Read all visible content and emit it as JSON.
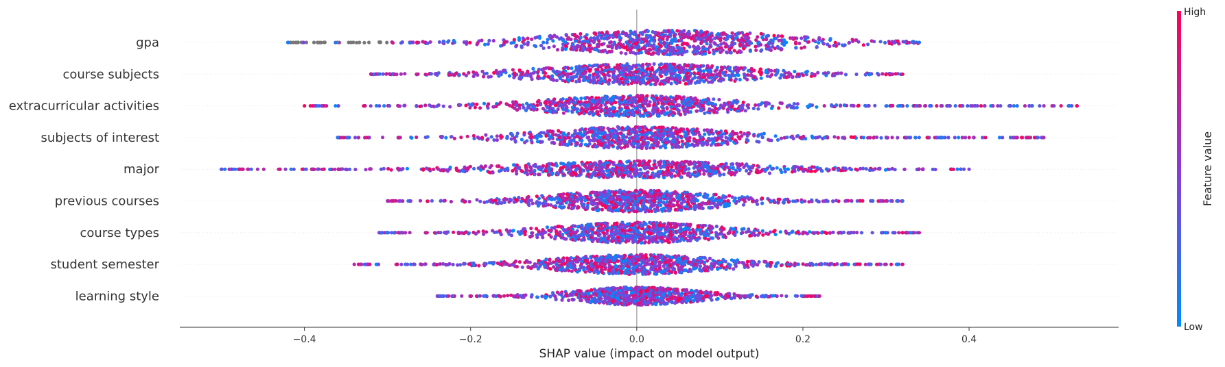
{
  "chart_data": {
    "type": "scatter",
    "subtype": "shap-beeswarm",
    "title": "",
    "xlabel": "SHAP value (impact on model output)",
    "ylabel": "",
    "xlim": [
      -0.55,
      0.58
    ],
    "xticks": [
      -0.4,
      -0.2,
      0.0,
      0.2,
      0.4
    ],
    "xtick_labels": [
      "−0.4",
      "−0.2",
      "0.0",
      "0.2",
      "0.4"
    ],
    "grid": false,
    "colorbar": {
      "label": "Feature value",
      "high_label": "High",
      "low_label": "Low",
      "high_color": "#ff0052",
      "low_color": "#008bfb",
      "missing_color": "#777777"
    },
    "features": [
      {
        "name": "gpa",
        "min": -0.42,
        "max": 0.34,
        "center": 0.04,
        "spread": 0.11,
        "peak": 1.0,
        "missing_range": [
          -0.42,
          -0.3
        ]
      },
      {
        "name": "course subjects",
        "min": -0.32,
        "max": 0.32,
        "center": 0.01,
        "spread": 0.1,
        "peak": 0.8
      },
      {
        "name": "extracurricular activities",
        "min": -0.4,
        "max": 0.53,
        "center": 0.0,
        "spread": 0.09,
        "peak": 0.8
      },
      {
        "name": "subjects of interest",
        "min": -0.36,
        "max": 0.49,
        "center": 0.0,
        "spread": 0.09,
        "peak": 0.85
      },
      {
        "name": "major",
        "min": -0.5,
        "max": 0.4,
        "center": 0.0,
        "spread": 0.11,
        "peak": 0.6
      },
      {
        "name": "previous courses",
        "min": -0.3,
        "max": 0.32,
        "center": 0.0,
        "spread": 0.08,
        "peak": 0.85
      },
      {
        "name": "course types",
        "min": -0.31,
        "max": 0.34,
        "center": 0.0,
        "spread": 0.08,
        "peak": 0.8
      },
      {
        "name": "student semester",
        "min": -0.34,
        "max": 0.32,
        "center": 0.0,
        "spread": 0.08,
        "peak": 0.75
      },
      {
        "name": "learning style",
        "min": -0.24,
        "max": 0.22,
        "center": 0.0,
        "spread": 0.06,
        "peak": 0.65
      }
    ]
  }
}
